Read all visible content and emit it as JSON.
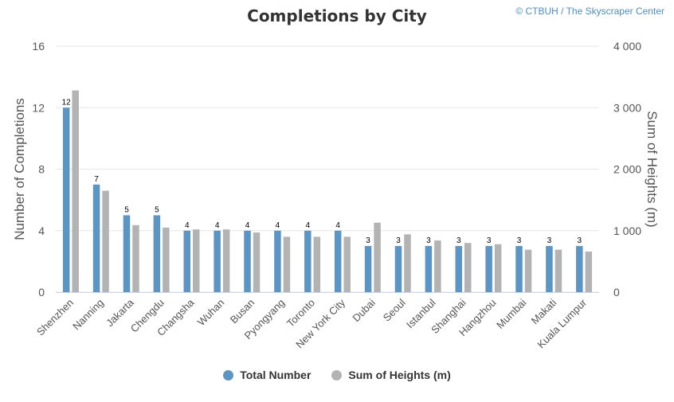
{
  "header": {
    "title": "Completions by City",
    "credit": "© CTBUH / The Skyscraper Center"
  },
  "colors": {
    "total": "#5b95c5",
    "heights": "#b3b3b3",
    "grid": "#e6e6e6",
    "axis_text": "#555555"
  },
  "legend": {
    "total_label": "Total Number",
    "heights_label": "Sum of Heights (m)"
  },
  "chart_data": {
    "type": "bar",
    "title": "Completions by City",
    "categories": [
      "Shenzhen",
      "Nanning",
      "Jakarta",
      "Chengdu",
      "Changsha",
      "Wuhan",
      "Busan",
      "Pyongyang",
      "Toronto",
      "New York City",
      "Dubai",
      "Seoul",
      "Istanbul",
      "Shanghai",
      "Hangzhou",
      "Mumbai",
      "Makati",
      "Kuala Lumpur"
    ],
    "series": [
      {
        "name": "Total Number",
        "axis": "left",
        "values": [
          12,
          7,
          5,
          5,
          4,
          4,
          4,
          4,
          4,
          4,
          3,
          3,
          3,
          3,
          3,
          3,
          3,
          3
        ],
        "data_labels": [
          "12",
          "7",
          "5",
          "5",
          "4",
          "4",
          "4",
          "4",
          "4",
          "4",
          "3",
          "3",
          "3",
          "3",
          "3",
          "3",
          "3",
          "3"
        ]
      },
      {
        "name": "Sum of Heights (m)",
        "axis": "right",
        "values": [
          3280,
          1650,
          1090,
          1050,
          1020,
          1020,
          970,
          900,
          900,
          900,
          1130,
          940,
          840,
          800,
          780,
          690,
          690,
          660
        ]
      }
    ],
    "y_left": {
      "label": "Number of Completions",
      "range": [
        0,
        16
      ],
      "ticks": [
        "0",
        "4",
        "8",
        "12",
        "16"
      ]
    },
    "y_right": {
      "label": "Sum of Heights (m)",
      "range": [
        0,
        4000
      ],
      "ticks": [
        "0",
        "1 000",
        "2 000",
        "3 000",
        "4 000"
      ]
    },
    "grid": true,
    "legend_position": "bottom"
  }
}
